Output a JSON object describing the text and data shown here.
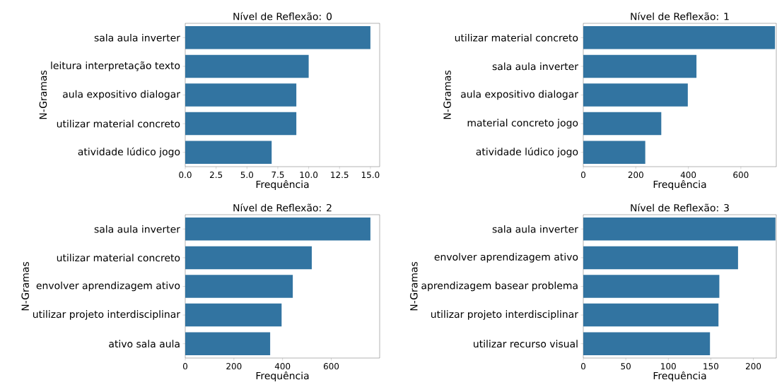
{
  "chart_data": [
    {
      "type": "bar",
      "orientation": "horizontal",
      "title": "Nível de Reflexão: 0",
      "xlabel": "Frequência",
      "ylabel": "N-Gramas",
      "categories": [
        "sala aula inverter",
        "leitura interpretação texto",
        "aula expositivo dialogar",
        "utilizar material concreto",
        "atividade lúdico jogo"
      ],
      "values": [
        15,
        10,
        9,
        9,
        7
      ],
      "color": "#3274a1",
      "xlim": [
        0,
        15.75
      ],
      "xticks": [
        {
          "value": 0,
          "label": "0.0"
        },
        {
          "value": 2.5,
          "label": "2.5"
        },
        {
          "value": 5,
          "label": "5.0"
        },
        {
          "value": 7.5,
          "label": "7.5"
        },
        {
          "value": 10,
          "label": "10.0"
        },
        {
          "value": 12.5,
          "label": "12.5"
        },
        {
          "value": 15,
          "label": "15.0"
        }
      ]
    },
    {
      "type": "bar",
      "orientation": "horizontal",
      "title": "Nível de Reflexão: 1",
      "xlabel": "Frequência",
      "ylabel": "N-Gramas",
      "categories": [
        "utilizar material concreto",
        "sala aula inverter",
        "aula expositivo dialogar",
        "material concreto jogo",
        "atividade lúdico jogo"
      ],
      "values": [
        730,
        431,
        398,
        297,
        236
      ],
      "color": "#3274a1",
      "xlim": [
        0,
        735
      ],
      "xticks": [
        0,
        200,
        400,
        600
      ]
    },
    {
      "type": "bar",
      "orientation": "horizontal",
      "title": "Nível de Reflexão: 2",
      "xlabel": "Frequência",
      "ylabel": "N-Gramas",
      "categories": [
        "sala aula inverter",
        "utilizar material concreto",
        "envolver aprendizagem ativo",
        "utilizar projeto interdisciplinar",
        "ativo sala aula"
      ],
      "values": [
        761,
        520,
        442,
        396,
        349
      ],
      "color": "#3274a1",
      "xlim": [
        0,
        799
      ],
      "xticks": [
        0,
        200,
        400,
        600
      ]
    },
    {
      "type": "bar",
      "orientation": "horizontal",
      "title": "Nível de Reflexão: 3",
      "xlabel": "Frequência",
      "ylabel": "N-Gramas",
      "categories": [
        "sala aula inverter",
        "envolver aprendizagem ativo",
        "aprendizagem basear problema",
        "utilizar projeto interdisciplinar",
        "utilizar recurso visual"
      ],
      "values": [
        226,
        182,
        160,
        159,
        149
      ],
      "color": "#3274a1",
      "xlim": [
        0,
        227
      ],
      "xticks": [
        0,
        50,
        100,
        150,
        200
      ]
    }
  ]
}
